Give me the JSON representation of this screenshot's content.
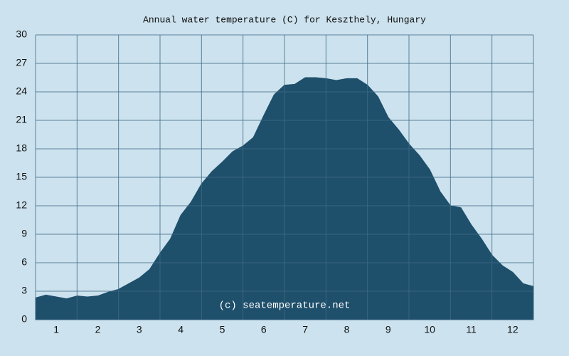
{
  "chart_data": {
    "type": "area",
    "title": "Annual water temperature (C) for Keszthely, Hungary",
    "watermark": "(c) seatemperature.net",
    "x": [
      0.5,
      0.75,
      1,
      1.25,
      1.5,
      1.75,
      2,
      2.25,
      2.5,
      2.75,
      3,
      3.25,
      3.5,
      3.75,
      4,
      4.25,
      4.5,
      4.75,
      5,
      5.25,
      5.5,
      5.75,
      6,
      6.25,
      6.5,
      6.75,
      7,
      7.25,
      7.5,
      7.75,
      8,
      8.25,
      8.5,
      8.75,
      9,
      9.25,
      9.5,
      9.75,
      10,
      10.25,
      10.5,
      10.75,
      11,
      11.25,
      11.5,
      11.75,
      12,
      12.25,
      12.5
    ],
    "series": [
      {
        "color": "#1e4f6b",
        "values": [
          2.3,
          2.6,
          2.4,
          2.2,
          2.5,
          2.4,
          2.5,
          2.9,
          3.2,
          3.8,
          4.4,
          5.3,
          7.0,
          8.5,
          11.0,
          12.4,
          14.3,
          15.6,
          16.6,
          17.7,
          18.3,
          19.2,
          21.5,
          23.7,
          24.7,
          24.8,
          25.5,
          25.5,
          25.4,
          25.2,
          25.4,
          25.4,
          24.7,
          23.5,
          21.3,
          20.0,
          18.5,
          17.3,
          15.8,
          13.5,
          12.0,
          11.8,
          10.0,
          8.5,
          6.8,
          5.7,
          5.0,
          3.8,
          3.5
        ]
      }
    ],
    "xlim": [
      0.5,
      12.5
    ],
    "xticks": [
      1,
      2,
      3,
      4,
      5,
      6,
      7,
      8,
      9,
      10,
      11,
      12
    ],
    "ylim": [
      0,
      30
    ],
    "yticks": [
      0,
      3,
      6,
      9,
      12,
      15,
      18,
      21,
      24,
      27,
      30
    ],
    "grid": true
  }
}
